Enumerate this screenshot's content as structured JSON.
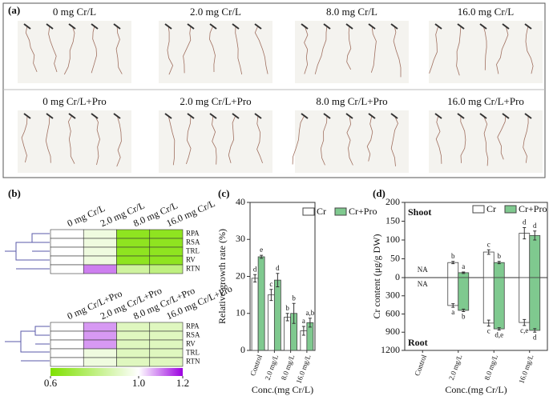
{
  "panel_a": {
    "label": "(a)",
    "images": [
      "0 mg Cr/L",
      "2.0 mg Cr/L",
      "8.0 mg Cr/L",
      "16.0 mg Cr/L",
      "0 mg Cr/L+Pro",
      "2.0 mg Cr/L+Pro",
      "8.0 mg Cr/L+Pro",
      "16.0 mg Cr/L+Pro"
    ]
  },
  "chart_data": [
    {
      "type": "heatmap",
      "panel": "(b)",
      "columns": [
        "0 mg Cr/L",
        "2.0 mg Cr/L",
        "8.0 mg Cr/L",
        "16.0 mg Cr/L"
      ],
      "rows": [
        "RPA",
        "RSA",
        "TRL",
        "RV",
        "RTN"
      ],
      "values": [
        [
          1.0,
          0.95,
          0.65,
          0.65
        ],
        [
          1.0,
          0.95,
          0.65,
          0.65
        ],
        [
          1.0,
          0.95,
          0.65,
          0.65
        ],
        [
          1.0,
          0.95,
          0.65,
          0.65
        ],
        [
          1.0,
          1.1,
          0.85,
          0.8
        ]
      ],
      "vlim": [
        0.6,
        1.2
      ],
      "colors": [
        "#7fe000",
        "#ffffff",
        "#9b00e0"
      ]
    },
    {
      "type": "heatmap",
      "columns": [
        "0 mg Cr/L+Pro",
        "2.0 mg Cr/L+Pro",
        "8.0 mg Cr/L+Pro",
        "16.0 mg Cr/L+Pro"
      ],
      "rows": [
        "RPA",
        "RSA",
        "RV",
        "TRL",
        "RTN"
      ],
      "values": [
        [
          1.0,
          1.08,
          0.9,
          0.9
        ],
        [
          1.0,
          1.08,
          0.9,
          0.9
        ],
        [
          1.0,
          1.08,
          0.9,
          0.9
        ],
        [
          1.0,
          0.95,
          0.9,
          0.9
        ],
        [
          1.0,
          0.95,
          0.9,
          0.9
        ]
      ],
      "vlim": [
        0.6,
        1.2
      ],
      "colors": [
        "#7fe000",
        "#ffffff",
        "#9b00e0"
      ],
      "colorbar_ticks": [
        0.6,
        {
          "value": 1.0,
          "label": "1.0"
        },
        1.2
      ]
    },
    {
      "type": "bar",
      "panel": "(c)",
      "ylabel": "Relative growth rate (%)",
      "xlabel": "Conc.(mg Cr/L)",
      "categories": [
        "Control",
        "2.0 mg/L",
        "8.0 mg/L",
        "16.0 mg/L"
      ],
      "ylim": [
        0,
        40
      ],
      "yticks": [
        0,
        10,
        20,
        30,
        40
      ],
      "series": [
        {
          "name": "Cr",
          "color": "#ffffff",
          "values": [
            19.5,
            15,
            9,
            5.3
          ],
          "errors": [
            1,
            1.5,
            1,
            1.2
          ],
          "letters": [
            "d",
            "c",
            "b",
            "a"
          ]
        },
        {
          "name": "Cr+Pro",
          "color": "#7fc98f",
          "values": [
            25.3,
            19,
            10,
            7.5
          ],
          "errors": [
            0.4,
            1.8,
            2.7,
            1.2
          ],
          "letters": [
            "e",
            "d",
            "b",
            "a,b"
          ]
        }
      ]
    },
    {
      "type": "mirror-bar",
      "panel": "(d)",
      "ylabel": "Cr content (μg/g DW)",
      "xlabel": "Conc.(mg Cr/L)",
      "top_label": "Shoot",
      "bottom_label": "Root",
      "na_label": "NA",
      "categories": [
        "Control",
        "2.0 mg/L",
        "8.0 mg/L",
        "16.0 mg/L"
      ],
      "ylim": [
        0,
        200
      ],
      "yticks": [
        0,
        50,
        100,
        150,
        200
      ],
      "y2lim": [
        0,
        1200
      ],
      "y2ticks": [
        300,
        600,
        900,
        1200
      ],
      "series": [
        {
          "name": "Cr",
          "color": "#ffffff",
          "values": [
            null,
            40,
            68,
            118
          ],
          "errors": [
            null,
            3,
            6,
            15
          ],
          "letters": [
            null,
            "b",
            "c",
            "d"
          ]
        },
        {
          "name": "Cr+Pro",
          "color": "#7fc98f",
          "values": [
            null,
            13,
            40,
            112
          ],
          "errors": [
            null,
            2,
            3,
            12
          ],
          "letters": [
            null,
            "a",
            "b",
            "d"
          ]
        },
        {
          "name": "Cr",
          "axis": "y2",
          "color": "#ffffff",
          "values": [
            null,
            460,
            750,
            740
          ],
          "errors": [
            null,
            30,
            50,
            50
          ],
          "letters": [
            null,
            "a",
            "c",
            "c,e"
          ]
        },
        {
          "name": "Cr+Pro",
          "axis": "y2",
          "color": "#7fc98f",
          "values": [
            null,
            540,
            845,
            870
          ],
          "errors": [
            null,
            20,
            20,
            30
          ],
          "letters": [
            null,
            "b",
            "d,e",
            "d"
          ]
        }
      ]
    }
  ]
}
